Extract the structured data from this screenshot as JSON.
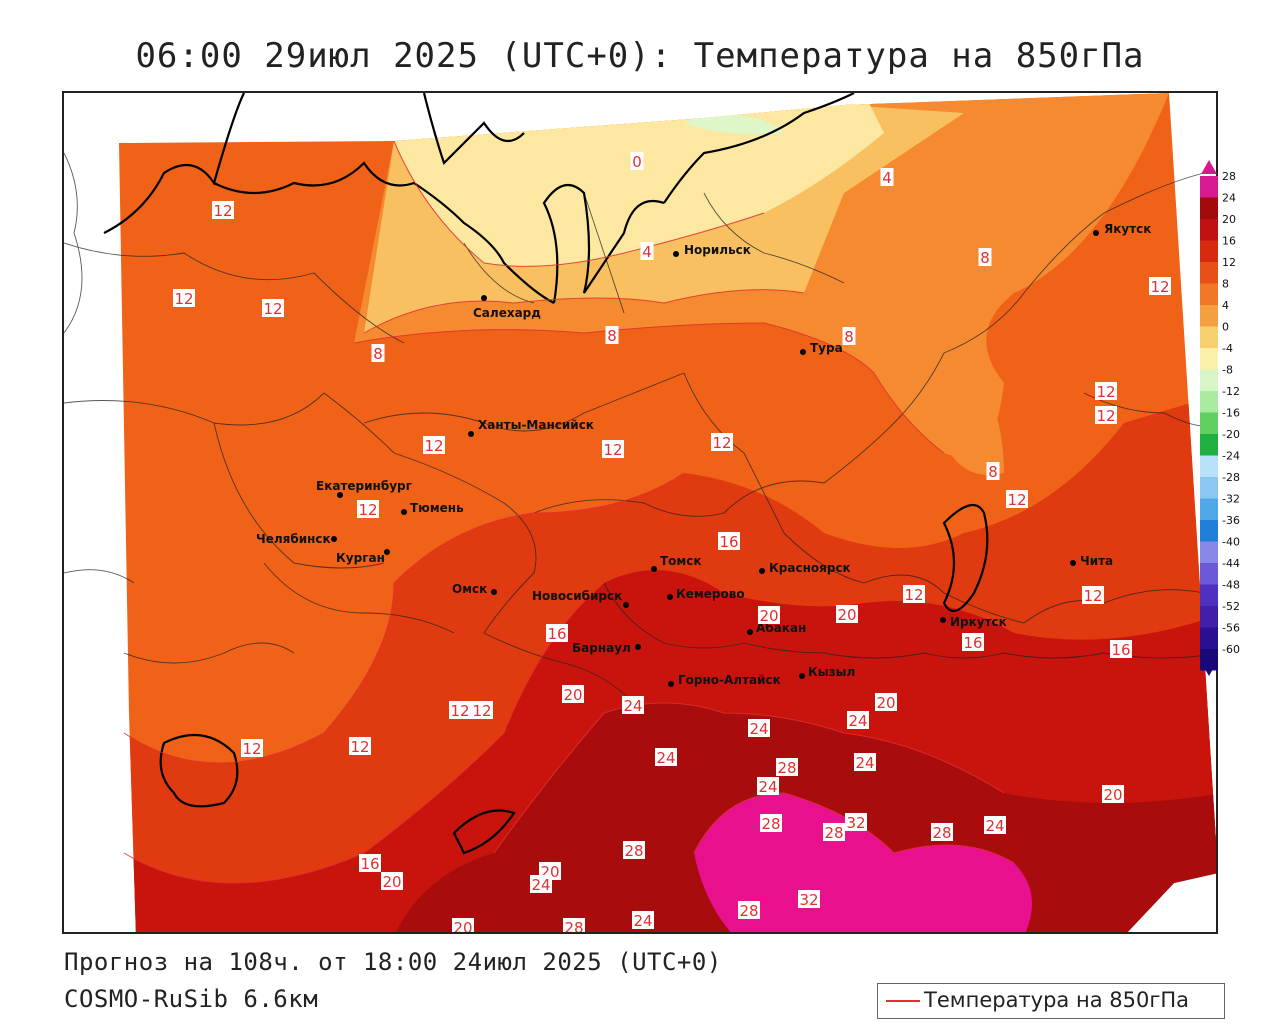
{
  "title": "06:00 29июл 2025 (UTC+0): Температура на 850гПа",
  "footer": {
    "forecast": "Прогноз на 108ч. от 18:00 24июл 2025 (UTC+0)",
    "model": "COSMO-RuSib 6.6км"
  },
  "legend": {
    "label": "Температура на 850гПа",
    "line_color": "#e03030"
  },
  "colors": {
    "band_28": "#e8108c",
    "band_24": "#a80c0c",
    "band_20": "#c8140c",
    "band_16": "#e03a10",
    "band_12": "#f06218",
    "band_8": "#f58a30",
    "band_4": "#f8c060",
    "band_0": "#fce8a0",
    "band_m4": "#dff6c8",
    "coast": "#000000",
    "isoline": "#e03030"
  },
  "color_scale": [
    {
      "label": "28",
      "color": "#d81890"
    },
    {
      "label": "24",
      "color": "#a00a0a"
    },
    {
      "label": "20",
      "color": "#c01010"
    },
    {
      "label": "16",
      "color": "#d82a10"
    },
    {
      "label": "12",
      "color": "#e85018"
    },
    {
      "label": "8",
      "color": "#f07828"
    },
    {
      "label": "4",
      "color": "#f5a040"
    },
    {
      "label": "0",
      "color": "#f8d070"
    },
    {
      "label": "-4",
      "color": "#fcefa8"
    },
    {
      "label": "-8",
      "color": "#d8f5c8"
    },
    {
      "label": "-12",
      "color": "#a8eca0"
    },
    {
      "label": "-16",
      "color": "#60d060"
    },
    {
      "label": "-20",
      "color": "#20b040"
    },
    {
      "label": "-24",
      "color": "#b8e0f8"
    },
    {
      "label": "-28",
      "color": "#88c8f0"
    },
    {
      "label": "-32",
      "color": "#50a8e8"
    },
    {
      "label": "-36",
      "color": "#2080d8"
    },
    {
      "label": "-40",
      "color": "#8888e8"
    },
    {
      "label": "-44",
      "color": "#6a5ad8"
    },
    {
      "label": "-48",
      "color": "#5030c0"
    },
    {
      "label": "-52",
      "color": "#4020a8"
    },
    {
      "label": "-56",
      "color": "#2a1090"
    },
    {
      "label": "-60",
      "color": "#1a0878"
    }
  ],
  "cities": [
    {
      "name": "Якутск"
    },
    {
      "name": "Норильск"
    },
    {
      "name": "Салехард"
    },
    {
      "name": "Тура"
    },
    {
      "name": "Ханты-Мансийск"
    },
    {
      "name": "Екатеринбург"
    },
    {
      "name": "Тюмень"
    },
    {
      "name": "Челябинск"
    },
    {
      "name": "Курган"
    },
    {
      "name": "Омск"
    },
    {
      "name": "Томск"
    },
    {
      "name": "Красноярск"
    },
    {
      "name": "Новосибирск"
    },
    {
      "name": "Кемерово"
    },
    {
      "name": "Абакан"
    },
    {
      "name": "Барнаул"
    },
    {
      "name": "Горно-Алтайск"
    },
    {
      "name": "Кызыл"
    },
    {
      "name": "Иркутск"
    },
    {
      "name": "Чита"
    }
  ],
  "isoline_labels": [
    {
      "text": "0"
    },
    {
      "text": "4"
    },
    {
      "text": "4"
    },
    {
      "text": "8"
    },
    {
      "text": "8"
    },
    {
      "text": "8"
    },
    {
      "text": "8"
    },
    {
      "text": "8"
    },
    {
      "text": "12"
    },
    {
      "text": "12"
    },
    {
      "text": "12"
    },
    {
      "text": "12"
    },
    {
      "text": "12"
    },
    {
      "text": "12"
    },
    {
      "text": "12"
    },
    {
      "text": "12"
    },
    {
      "text": "12"
    },
    {
      "text": "12"
    },
    {
      "text": "12"
    },
    {
      "text": "12"
    },
    {
      "text": "12"
    },
    {
      "text": "12"
    },
    {
      "text": "12"
    },
    {
      "text": "12"
    },
    {
      "text": "12"
    },
    {
      "text": "16"
    },
    {
      "text": "16"
    },
    {
      "text": "16"
    },
    {
      "text": "16"
    },
    {
      "text": "16"
    },
    {
      "text": "20"
    },
    {
      "text": "20"
    },
    {
      "text": "20"
    },
    {
      "text": "20"
    },
    {
      "text": "20"
    },
    {
      "text": "20"
    },
    {
      "text": "20"
    },
    {
      "text": "20"
    },
    {
      "text": "24"
    },
    {
      "text": "24"
    },
    {
      "text": "24"
    },
    {
      "text": "24"
    },
    {
      "text": "24"
    },
    {
      "text": "24"
    },
    {
      "text": "24"
    },
    {
      "text": "24"
    },
    {
      "text": "24"
    },
    {
      "text": "28"
    },
    {
      "text": "28"
    },
    {
      "text": "28"
    },
    {
      "text": "28"
    },
    {
      "text": "28"
    },
    {
      "text": "28"
    },
    {
      "text": "28"
    },
    {
      "text": "32"
    },
    {
      "text": "32"
    }
  ]
}
